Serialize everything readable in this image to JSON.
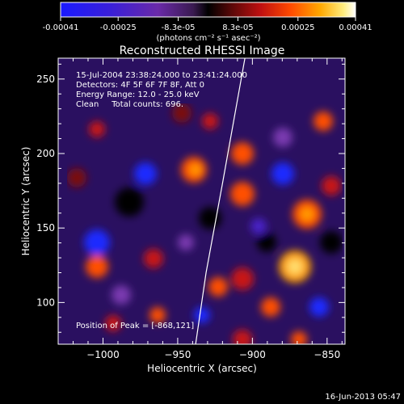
{
  "colorbar": {
    "ticks": [
      "-0.00041",
      "-0.00025",
      "-8.3e-05",
      "8.3e-05",
      "0.00025",
      "0.00041"
    ],
    "tick_values": [
      -0.00041,
      -0.00025,
      -8.3e-05,
      8.3e-05,
      0.00025,
      0.00041
    ],
    "range": [
      -0.00041,
      0.00041
    ],
    "unit_label": "(photons cm⁻² s⁻¹ asec⁻²)"
  },
  "chart_data": {
    "type": "heatmap",
    "title": "Reconstructed RHESSI Image",
    "xlabel": "Heliocentric X (arcsec)",
    "ylabel": "Heliocentric Y (arcsec)",
    "xlim": [
      -1030,
      -838
    ],
    "ylim": [
      72,
      264
    ],
    "xticks": [
      -1000,
      -950,
      -900,
      -850
    ],
    "xtick_labels": [
      "−1000",
      "−950",
      "−900",
      "−850"
    ],
    "yticks": [
      100,
      150,
      200,
      250
    ],
    "ytick_labels": [
      "100",
      "150",
      "200",
      "250"
    ],
    "annotations": [
      "15-Jul-2004 23:38:24.000 to 23:41:24.000",
      "Detectors: 4F 5F 6F 7F 8F, Att 0",
      "Energy Range: 12.0 - 25.0 keV",
      "Clean     Total counts: 696."
    ],
    "peak_label": "Position of Peak = [-868,121]",
    "peak": [
      -868,
      121
    ],
    "limb_points": [
      [
        -938,
        72
      ],
      [
        -931,
        120
      ],
      [
        -920,
        180
      ],
      [
        -905,
        264
      ]
    ]
  },
  "footer": {
    "date": "16-Jun-2013 05:47"
  },
  "colors": {
    "background": "#000000",
    "foreground": "#ffffff"
  }
}
